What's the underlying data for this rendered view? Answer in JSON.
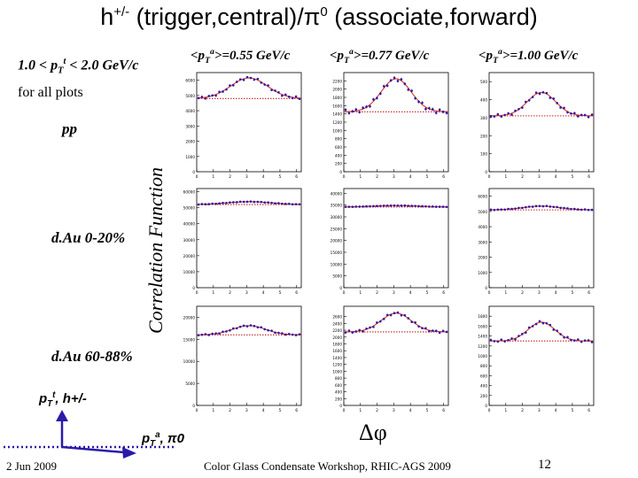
{
  "slide": {
    "title_main": "h",
    "title_sup": "+/-",
    "title_rest": " (trigger,central)/π",
    "title_sup2": "0",
    "title_end": " (associate,forward)",
    "trigger_range": {
      "pre": "1.0 < p",
      "sub": "T",
      "sup": "t",
      "post": " < 2.0 GeV/c"
    },
    "for_all_plots": "for all plots",
    "y_axis_label": "Correlation Function",
    "x_axis_label": "Δφ",
    "trigger_diagram_label": {
      "p": "p",
      "sub": "T",
      "sup": "t",
      "rest": ", h+/-"
    },
    "assoc_diagram_label": {
      "p": "p",
      "sub": "T",
      "sup": "a",
      "rest": ", π0"
    },
    "footer": {
      "date": "2 Jun 2009",
      "workshop": "Color Glass Condensate Workshop, RHIC-AGS 2009",
      "page": "12"
    }
  },
  "colors": {
    "data_points": "#2a1ba8",
    "fit_curve": "#e0341f",
    "pedestal": "#c81e1e",
    "diagram_arrow": "#2a1ba8"
  },
  "column_headers": [
    {
      "pre": "<p",
      "sub": "T",
      "sup": "a",
      "post": ">=0.55 GeV/c"
    },
    {
      "pre": "<p",
      "sub": "T",
      "sup": "a",
      "post": ">=0.77 GeV/c"
    },
    {
      "pre": "<p",
      "sub": "T",
      "sup": "a",
      "post": ">=1.00 GeV/c"
    }
  ],
  "row_labels": [
    "pp",
    "d.Au 0-20%",
    "d.Au 60-88%"
  ],
  "chart_data": {
    "type": "scatter",
    "x_label": "Δφ",
    "y_label": "Correlation Function",
    "xlim": [
      0,
      6.28
    ],
    "x_ticks": [
      "0",
      "1",
      "2",
      "3",
      "4",
      "5",
      "6"
    ],
    "panels": [
      {
        "row": "pp",
        "col": 0,
        "ylim": [
          0,
          6500
        ],
        "yticks": [
          "0",
          "1000",
          "2000",
          "3000",
          "4000",
          "5000",
          "6000"
        ],
        "pedestal": 4800,
        "peak": 1350,
        "sigma": 1.1
      },
      {
        "row": "pp",
        "col": 1,
        "ylim": [
          0,
          2400
        ],
        "yticks": [
          "0",
          "200",
          "400",
          "600",
          "800",
          "1000",
          "1200",
          "1400",
          "1600",
          "1800",
          "2000",
          "2200"
        ],
        "pedestal": 1450,
        "peak": 800,
        "sigma": 0.9
      },
      {
        "row": "pp",
        "col": 2,
        "ylim": [
          0,
          550
        ],
        "yticks": [
          "0",
          "100",
          "200",
          "300",
          "400",
          "500"
        ],
        "pedestal": 310,
        "peak": 130,
        "sigma": 0.85
      },
      {
        "row": "d.Au 0-20%",
        "col": 0,
        "ylim": [
          0,
          62000
        ],
        "yticks": [
          "0",
          "10000",
          "20000",
          "30000",
          "40000",
          "50000",
          "60000"
        ],
        "pedestal": 52000,
        "peak": 1800,
        "sigma": 1.3
      },
      {
        "row": "d.Au 0-20%",
        "col": 1,
        "ylim": [
          0,
          42000
        ],
        "yticks": [
          "0",
          "5000",
          "10000",
          "15000",
          "20000",
          "25000",
          "30000",
          "35000",
          "40000"
        ],
        "pedestal": 34200,
        "peak": 600,
        "sigma": 1.3
      },
      {
        "row": "d.Au 0-20%",
        "col": 2,
        "ylim": [
          0,
          6500
        ],
        "yticks": [
          "0",
          "1000",
          "2000",
          "3000",
          "4000",
          "5000",
          "6000"
        ],
        "pedestal": 5100,
        "peak": 250,
        "sigma": 1.1
      },
      {
        "row": "d.Au 60-88%",
        "col": 0,
        "ylim": [
          0,
          22500
        ],
        "yticks": [
          "0",
          "5000",
          "10000",
          "15000",
          "20000"
        ],
        "pedestal": 16000,
        "peak": 2100,
        "sigma": 1.0
      },
      {
        "row": "d.Au 60-88%",
        "col": 1,
        "ylim": [
          0,
          2900
        ],
        "yticks": [
          "0",
          "200",
          "400",
          "600",
          "800",
          "1000",
          "1200",
          "1400",
          "1600",
          "1800",
          "2000",
          "2200",
          "2400",
          "2600"
        ],
        "pedestal": 2150,
        "peak": 550,
        "sigma": 0.9
      },
      {
        "row": "d.Au 60-88%",
        "col": 2,
        "ylim": [
          0,
          2000
        ],
        "yticks": [
          "0",
          "200",
          "400",
          "600",
          "800",
          "1000",
          "1200",
          "1400",
          "1600",
          "1800"
        ],
        "pedestal": 1300,
        "peak": 380,
        "sigma": 0.8
      }
    ]
  }
}
